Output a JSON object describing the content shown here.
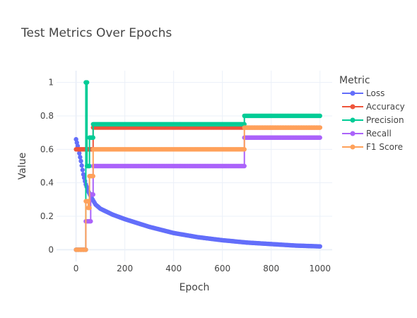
{
  "chart_data": {
    "type": "line",
    "title": "Test Metrics Over Epochs",
    "xlabel": "Epoch",
    "ylabel": "Value",
    "xlim": [
      -80,
      1050
    ],
    "ylim": [
      -0.07,
      1.07
    ],
    "xticks": [
      0,
      200,
      400,
      600,
      800,
      1000
    ],
    "yticks": [
      0,
      0.2,
      0.4,
      0.6,
      0.8,
      1
    ],
    "xtick_labels": [
      "0",
      "200",
      "400",
      "600",
      "800",
      "1000"
    ],
    "ytick_labels": [
      "0",
      "0.2",
      "0.4",
      "0.6",
      "0.8",
      "1"
    ],
    "grid": true,
    "legend": {
      "title": "Metric",
      "placement": "right"
    },
    "series": [
      {
        "name": "Loss",
        "color": "#636efa",
        "kind": "curve",
        "points": [
          [
            0,
            0.66
          ],
          [
            10,
            0.6
          ],
          [
            20,
            0.53
          ],
          [
            30,
            0.45
          ],
          [
            40,
            0.39
          ],
          [
            50,
            0.35
          ],
          [
            60,
            0.32
          ],
          [
            80,
            0.27
          ],
          [
            100,
            0.245
          ],
          [
            150,
            0.21
          ],
          [
            200,
            0.183
          ],
          [
            300,
            0.137
          ],
          [
            400,
            0.1
          ],
          [
            500,
            0.075
          ],
          [
            600,
            0.057
          ],
          [
            700,
            0.043
          ],
          [
            800,
            0.034
          ],
          [
            900,
            0.025
          ],
          [
            1000,
            0.02
          ]
        ]
      },
      {
        "name": "Accuracy",
        "color": "#ef553b",
        "kind": "step",
        "points": [
          [
            0,
            0.6
          ],
          [
            40,
            0.6
          ],
          [
            40,
            0.6
          ],
          [
            70,
            0.6
          ],
          [
            70,
            0.73
          ],
          [
            1000,
            0.73
          ]
        ]
      },
      {
        "name": "Precision",
        "color": "#00cc96",
        "kind": "step",
        "points": [
          [
            0,
            0
          ],
          [
            40,
            0
          ],
          [
            40,
            1
          ],
          [
            45,
            1
          ],
          [
            45,
            0.5
          ],
          [
            55,
            0.5
          ],
          [
            55,
            0.67
          ],
          [
            70,
            0.67
          ],
          [
            70,
            0.75
          ],
          [
            690,
            0.75
          ],
          [
            690,
            0.8
          ],
          [
            1000,
            0.8
          ]
        ]
      },
      {
        "name": "Recall",
        "color": "#ab63fa",
        "kind": "step",
        "points": [
          [
            0,
            0
          ],
          [
            40,
            0
          ],
          [
            40,
            0.17
          ],
          [
            60,
            0.17
          ],
          [
            60,
            0.33
          ],
          [
            70,
            0.33
          ],
          [
            70,
            0.5
          ],
          [
            690,
            0.5
          ],
          [
            690,
            0.67
          ],
          [
            1000,
            0.67
          ]
        ]
      },
      {
        "name": "F1 Score",
        "color": "#ffa15a",
        "kind": "step",
        "points": [
          [
            0,
            0
          ],
          [
            40,
            0
          ],
          [
            40,
            0.29
          ],
          [
            50,
            0.29
          ],
          [
            50,
            0.25
          ],
          [
            55,
            0.25
          ],
          [
            55,
            0.44
          ],
          [
            70,
            0.44
          ],
          [
            70,
            0.6
          ],
          [
            690,
            0.6
          ],
          [
            690,
            0.73
          ],
          [
            1000,
            0.73
          ]
        ]
      }
    ]
  }
}
